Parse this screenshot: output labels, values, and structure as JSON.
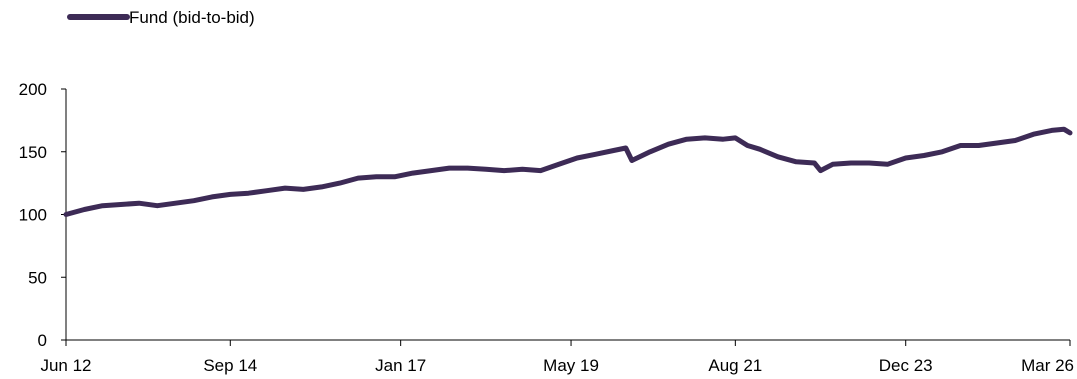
{
  "chart_data": {
    "type": "line",
    "title": "",
    "xlabel": "",
    "ylabel": "",
    "ylim": [
      0,
      200
    ],
    "yticks": [
      "0",
      "50",
      "100",
      "150",
      "200"
    ],
    "xticks": [
      "Jun 12",
      "Sep 14",
      "Jan 17",
      "May 19",
      "Aug 21",
      "Dec 23",
      "Mar 26"
    ],
    "grid": false,
    "legend": "top-left",
    "series": [
      {
        "name": "Fund (bid-to-bid)",
        "color": "#3d2b56",
        "x": [
          "2012-06",
          "2012-09",
          "2012-12",
          "2013-03",
          "2013-06",
          "2013-09",
          "2013-12",
          "2014-03",
          "2014-06",
          "2014-09",
          "2014-12",
          "2015-03",
          "2015-06",
          "2015-09",
          "2015-12",
          "2016-03",
          "2016-06",
          "2016-09",
          "2016-12",
          "2017-03",
          "2017-06",
          "2017-09",
          "2017-12",
          "2018-03",
          "2018-06",
          "2018-09",
          "2018-12",
          "2019-03",
          "2019-06",
          "2019-09",
          "2019-12",
          "2020-02",
          "2020-03",
          "2020-06",
          "2020-09",
          "2020-12",
          "2021-03",
          "2021-06",
          "2021-08",
          "2021-10",
          "2021-12",
          "2022-03",
          "2022-06",
          "2022-09",
          "2022-10",
          "2022-12",
          "2023-03",
          "2023-06",
          "2023-09",
          "2023-12",
          "2024-03",
          "2024-06",
          "2024-09",
          "2024-12",
          "2025-03",
          "2025-06",
          "2025-09",
          "2025-12",
          "2026-02",
          "2026-03"
        ],
        "y": [
          100,
          104,
          107,
          108,
          109,
          107,
          109,
          111,
          114,
          116,
          117,
          119,
          121,
          120,
          122,
          125,
          129,
          130,
          130,
          133,
          135,
          137,
          137,
          136,
          135,
          136,
          135,
          140,
          145,
          148,
          151,
          153,
          143,
          150,
          156,
          160,
          161,
          160,
          161,
          155,
          152,
          146,
          142,
          141,
          135,
          140,
          141,
          141,
          140,
          145,
          147,
          150,
          155,
          155,
          157,
          159,
          164,
          167,
          168,
          165
        ]
      }
    ]
  }
}
